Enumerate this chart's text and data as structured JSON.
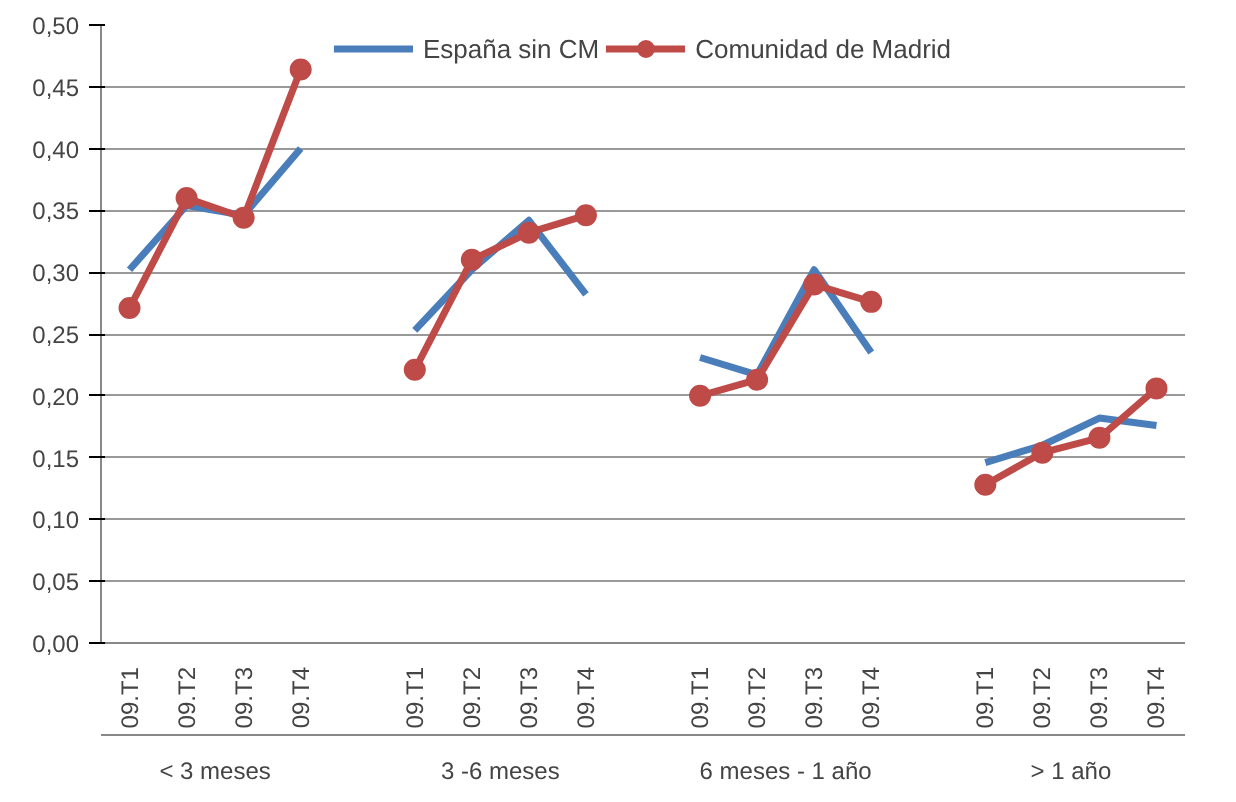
{
  "chart_data": {
    "type": "line",
    "categories": [
      "09.T1",
      "09.T2",
      "09.T3",
      "09.T4",
      null,
      "09.T1",
      "09.T2",
      "09.T3",
      "09.T4",
      null,
      "09.T1",
      "09.T2",
      "09.T3",
      "09.T4",
      null,
      "09.T1",
      "09.T2",
      "09.T3",
      "09.T4"
    ],
    "annotations": [
      "< 3 meses",
      "3 -6 meses",
      "6 meses - 1 año",
      "> 1 año"
    ],
    "series": [
      {
        "name": "España sin CM",
        "color": "#4a7ebb",
        "marker": "none",
        "values": [
          0.302,
          0.354,
          0.346,
          0.4,
          null,
          0.253,
          0.302,
          0.342,
          0.282,
          null,
          0.231,
          0.217,
          0.302,
          0.235,
          null,
          0.146,
          0.16,
          0.182,
          0.176
        ]
      },
      {
        "name": "Comunidad de Madrid",
        "color": "#be4b48",
        "marker": "circle",
        "values": [
          0.271,
          0.36,
          0.344,
          0.464,
          null,
          0.221,
          0.31,
          0.332,
          0.346,
          null,
          0.2,
          0.213,
          0.29,
          0.276,
          null,
          0.128,
          0.154,
          0.166,
          0.206
        ]
      }
    ],
    "ylim": [
      0,
      0.5
    ],
    "yticks": [
      {
        "value": 0,
        "label": "0,00"
      },
      {
        "value": 0.05,
        "label": "0,05"
      },
      {
        "value": 0.1,
        "label": "0,10"
      },
      {
        "value": 0.15,
        "label": "0,15"
      },
      {
        "value": 0.2,
        "label": "0,20"
      },
      {
        "value": 0.25,
        "label": "0,25"
      },
      {
        "value": 0.3,
        "label": "0,30"
      },
      {
        "value": 0.35,
        "label": "0,35"
      },
      {
        "value": 0.4,
        "label": "0,40"
      },
      {
        "value": 0.45,
        "label": "0,45"
      },
      {
        "value": 0.5,
        "label": "0,50"
      }
    ],
    "grid": "y",
    "legend": "top",
    "line_style": "solid"
  }
}
